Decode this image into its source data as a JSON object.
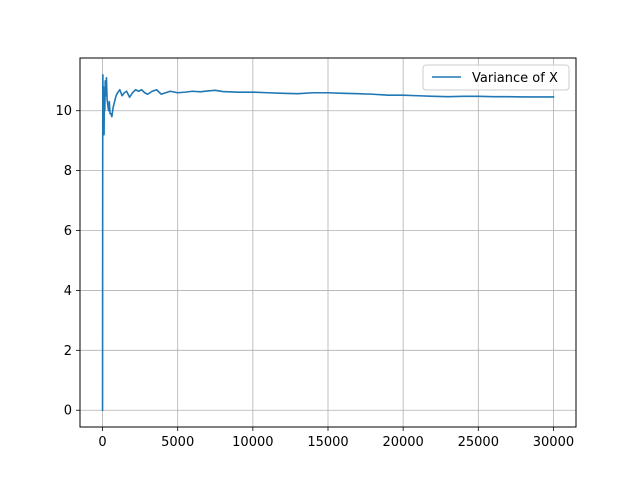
{
  "chart_data": {
    "type": "line",
    "title": "",
    "xlabel": "",
    "ylabel": "",
    "xlim": [
      -1500,
      31500
    ],
    "ylim": [
      -0.56,
      11.76
    ],
    "x_ticks": [
      0,
      5000,
      10000,
      15000,
      20000,
      25000,
      30000
    ],
    "x_tick_labels": [
      "0",
      "5000",
      "10000",
      "15000",
      "20000",
      "25000",
      "30000"
    ],
    "y_ticks": [
      0,
      2,
      4,
      6,
      8,
      10
    ],
    "y_tick_labels": [
      "0",
      "2",
      "4",
      "6",
      "8",
      "10"
    ],
    "grid": true,
    "legend_position": "top-right",
    "series": [
      {
        "name": "Variance of X",
        "color": "#1f77b4",
        "points": [
          [
            0,
            0.0
          ],
          [
            10,
            8.5
          ],
          [
            20,
            11.2
          ],
          [
            40,
            9.3
          ],
          [
            60,
            10.8
          ],
          [
            80,
            9.6
          ],
          [
            100,
            9.2
          ],
          [
            120,
            10.6
          ],
          [
            150,
            10.0
          ],
          [
            180,
            11.0
          ],
          [
            220,
            10.5
          ],
          [
            260,
            11.1
          ],
          [
            300,
            10.4
          ],
          [
            350,
            10.2
          ],
          [
            400,
            10.0
          ],
          [
            450,
            10.3
          ],
          [
            500,
            9.9
          ],
          [
            560,
            9.9
          ],
          [
            620,
            9.8
          ],
          [
            700,
            10.1
          ],
          [
            800,
            10.3
          ],
          [
            900,
            10.5
          ],
          [
            1000,
            10.6
          ],
          [
            1150,
            10.7
          ],
          [
            1300,
            10.5
          ],
          [
            1450,
            10.6
          ],
          [
            1600,
            10.65
          ],
          [
            1800,
            10.45
          ],
          [
            2000,
            10.6
          ],
          [
            2200,
            10.7
          ],
          [
            2400,
            10.65
          ],
          [
            2600,
            10.7
          ],
          [
            2800,
            10.6
          ],
          [
            3000,
            10.55
          ],
          [
            3300,
            10.65
          ],
          [
            3600,
            10.7
          ],
          [
            3900,
            10.55
          ],
          [
            4200,
            10.6
          ],
          [
            4500,
            10.65
          ],
          [
            5000,
            10.6
          ],
          [
            5500,
            10.62
          ],
          [
            6000,
            10.65
          ],
          [
            6500,
            10.63
          ],
          [
            7000,
            10.66
          ],
          [
            7500,
            10.68
          ],
          [
            8000,
            10.64
          ],
          [
            9000,
            10.62
          ],
          [
            10000,
            10.62
          ],
          [
            11000,
            10.6
          ],
          [
            12000,
            10.58
          ],
          [
            13000,
            10.57
          ],
          [
            14000,
            10.6
          ],
          [
            15000,
            10.6
          ],
          [
            16000,
            10.58
          ],
          [
            17000,
            10.57
          ],
          [
            18000,
            10.55
          ],
          [
            19000,
            10.52
          ],
          [
            20000,
            10.52
          ],
          [
            21000,
            10.5
          ],
          [
            22000,
            10.48
          ],
          [
            23000,
            10.47
          ],
          [
            24000,
            10.48
          ],
          [
            25000,
            10.48
          ],
          [
            26000,
            10.47
          ],
          [
            27000,
            10.47
          ],
          [
            28000,
            10.46
          ],
          [
            29000,
            10.46
          ],
          [
            30000,
            10.46
          ]
        ]
      }
    ]
  }
}
